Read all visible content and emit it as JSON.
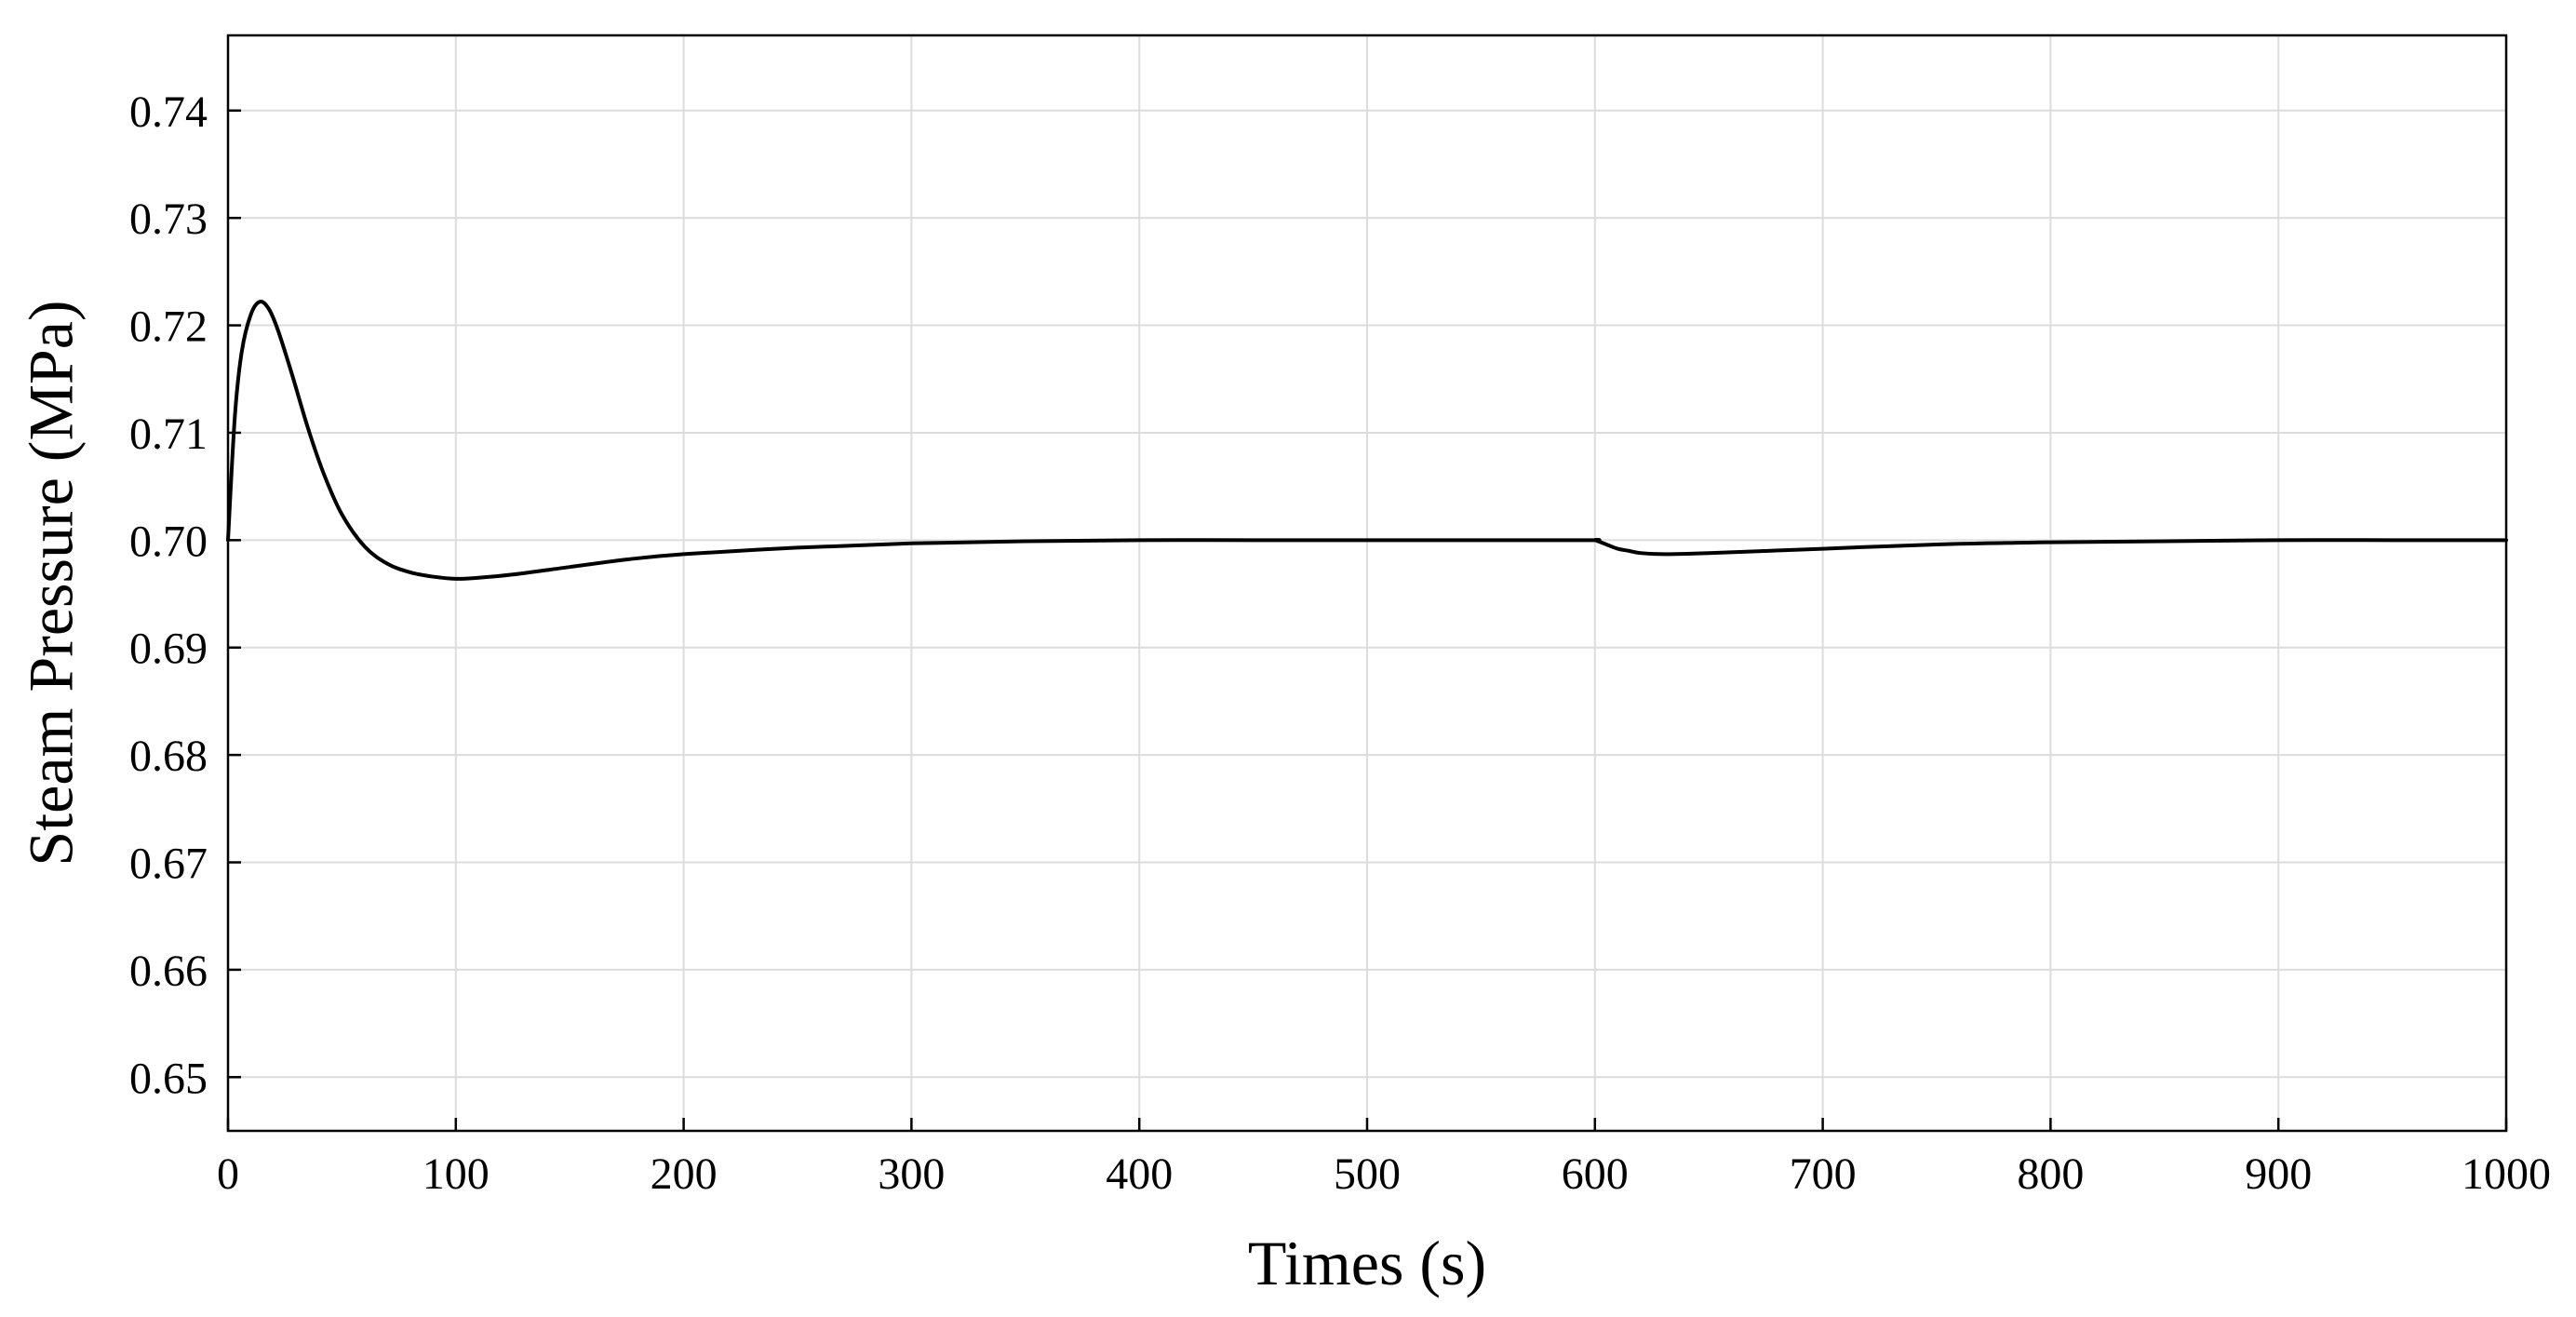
{
  "chart_data": {
    "type": "line",
    "title": "",
    "xlabel": "Times (s)",
    "ylabel": "Steam Pressure (MPa)",
    "xlim": [
      0,
      1000
    ],
    "ylim": [
      0.645,
      0.747
    ],
    "xticks": [
      0,
      100,
      200,
      300,
      400,
      500,
      600,
      700,
      800,
      900,
      1000
    ],
    "xtick_labels": [
      "0",
      "100",
      "200",
      "300",
      "400",
      "500",
      "600",
      "700",
      "800",
      "900",
      "1000"
    ],
    "yticks": [
      0.65,
      0.66,
      0.67,
      0.68,
      0.69,
      0.7,
      0.71,
      0.72,
      0.73,
      0.74
    ],
    "ytick_labels": [
      "0.65",
      "0.66",
      "0.67",
      "0.68",
      "0.69",
      "0.70",
      "0.71",
      "0.72",
      "0.73",
      "0.74"
    ],
    "grid": true,
    "legend": "none",
    "line_color": "#000000",
    "series": [
      {
        "x": [
          0,
          3,
          6,
          10,
          14,
          18,
          22,
          28,
          35,
          42,
          50,
          60,
          70,
          80,
          90,
          100,
          110,
          125,
          150,
          175,
          200,
          250,
          300,
          350,
          400,
          450,
          500,
          550,
          598,
          600,
          605,
          610,
          615,
          620,
          630,
          650,
          700,
          750,
          800,
          850,
          900,
          950,
          1000
        ],
        "y": [
          0.7,
          0.7115,
          0.7175,
          0.721,
          0.7222,
          0.7215,
          0.7195,
          0.7155,
          0.7105,
          0.7062,
          0.7024,
          0.6994,
          0.6978,
          0.697,
          0.6966,
          0.6964,
          0.6965,
          0.6968,
          0.6975,
          0.6982,
          0.6987,
          0.6993,
          0.6997,
          0.6999,
          0.7,
          0.7,
          0.7,
          0.7,
          0.7,
          0.7,
          0.6996,
          0.6992,
          0.699,
          0.6988,
          0.6987,
          0.6988,
          0.6992,
          0.6996,
          0.6998,
          0.6999,
          0.7,
          0.7,
          0.7
        ]
      }
    ]
  }
}
